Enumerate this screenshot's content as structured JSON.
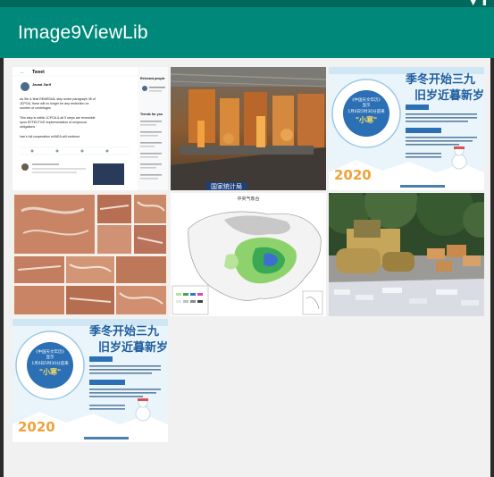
{
  "app_bar": {
    "title": "Image9ViewLib"
  },
  "status_bar": {
    "icons": [
      "signal-icon",
      "battery-icon"
    ]
  },
  "colors": {
    "status_bar": "#00695c",
    "app_bar": "#00897b",
    "content_bg": "#f1f1f1"
  },
  "grid": {
    "images": [
      {
        "kind": "tweet-screenshot",
        "header": "Tweet",
        "author": "Javad Zarif",
        "body_lines": [
          "As 5th & final REMEDIAL step under paragraph 36 of",
          "JCPOA, there will no longer be any restriction on",
          "number of centrifuges",
          "This step is within JCPOA & all 5 steps are reversible",
          "upon EFFECTIVE implementation of reciprocal",
          "obligations",
          "Iran's full cooperation w/IAEA will continue"
        ],
        "sidebar_heading": "Relevant people",
        "trends_heading": "Trends for you"
      },
      {
        "kind": "factory-photo",
        "caption": "国家统计局"
      },
      {
        "kind": "solar-term-poster",
        "headline_1": "季冬开始三九",
        "headline_2": "旧岁近暮新岁",
        "circle_line_1": "《中国天文年历》",
        "circle_line_2": "显示",
        "circle_line_3": "1月6日5时30分迎来",
        "circle_line_4": "\"小寒\"",
        "year": "2020"
      },
      {
        "kind": "rock-art-collage"
      },
      {
        "kind": "weather-map",
        "title": "中央气象台"
      },
      {
        "kind": "road-roller-photo"
      },
      {
        "kind": "solar-term-poster",
        "headline_1": "季冬开始三九",
        "headline_2": "旧岁近暮新岁",
        "circle_line_1": "《中国天文年历》",
        "circle_line_2": "显示",
        "circle_line_3": "1月6日5时30分迎来",
        "circle_line_4": "\"小寒\"",
        "year": "2020"
      }
    ]
  }
}
